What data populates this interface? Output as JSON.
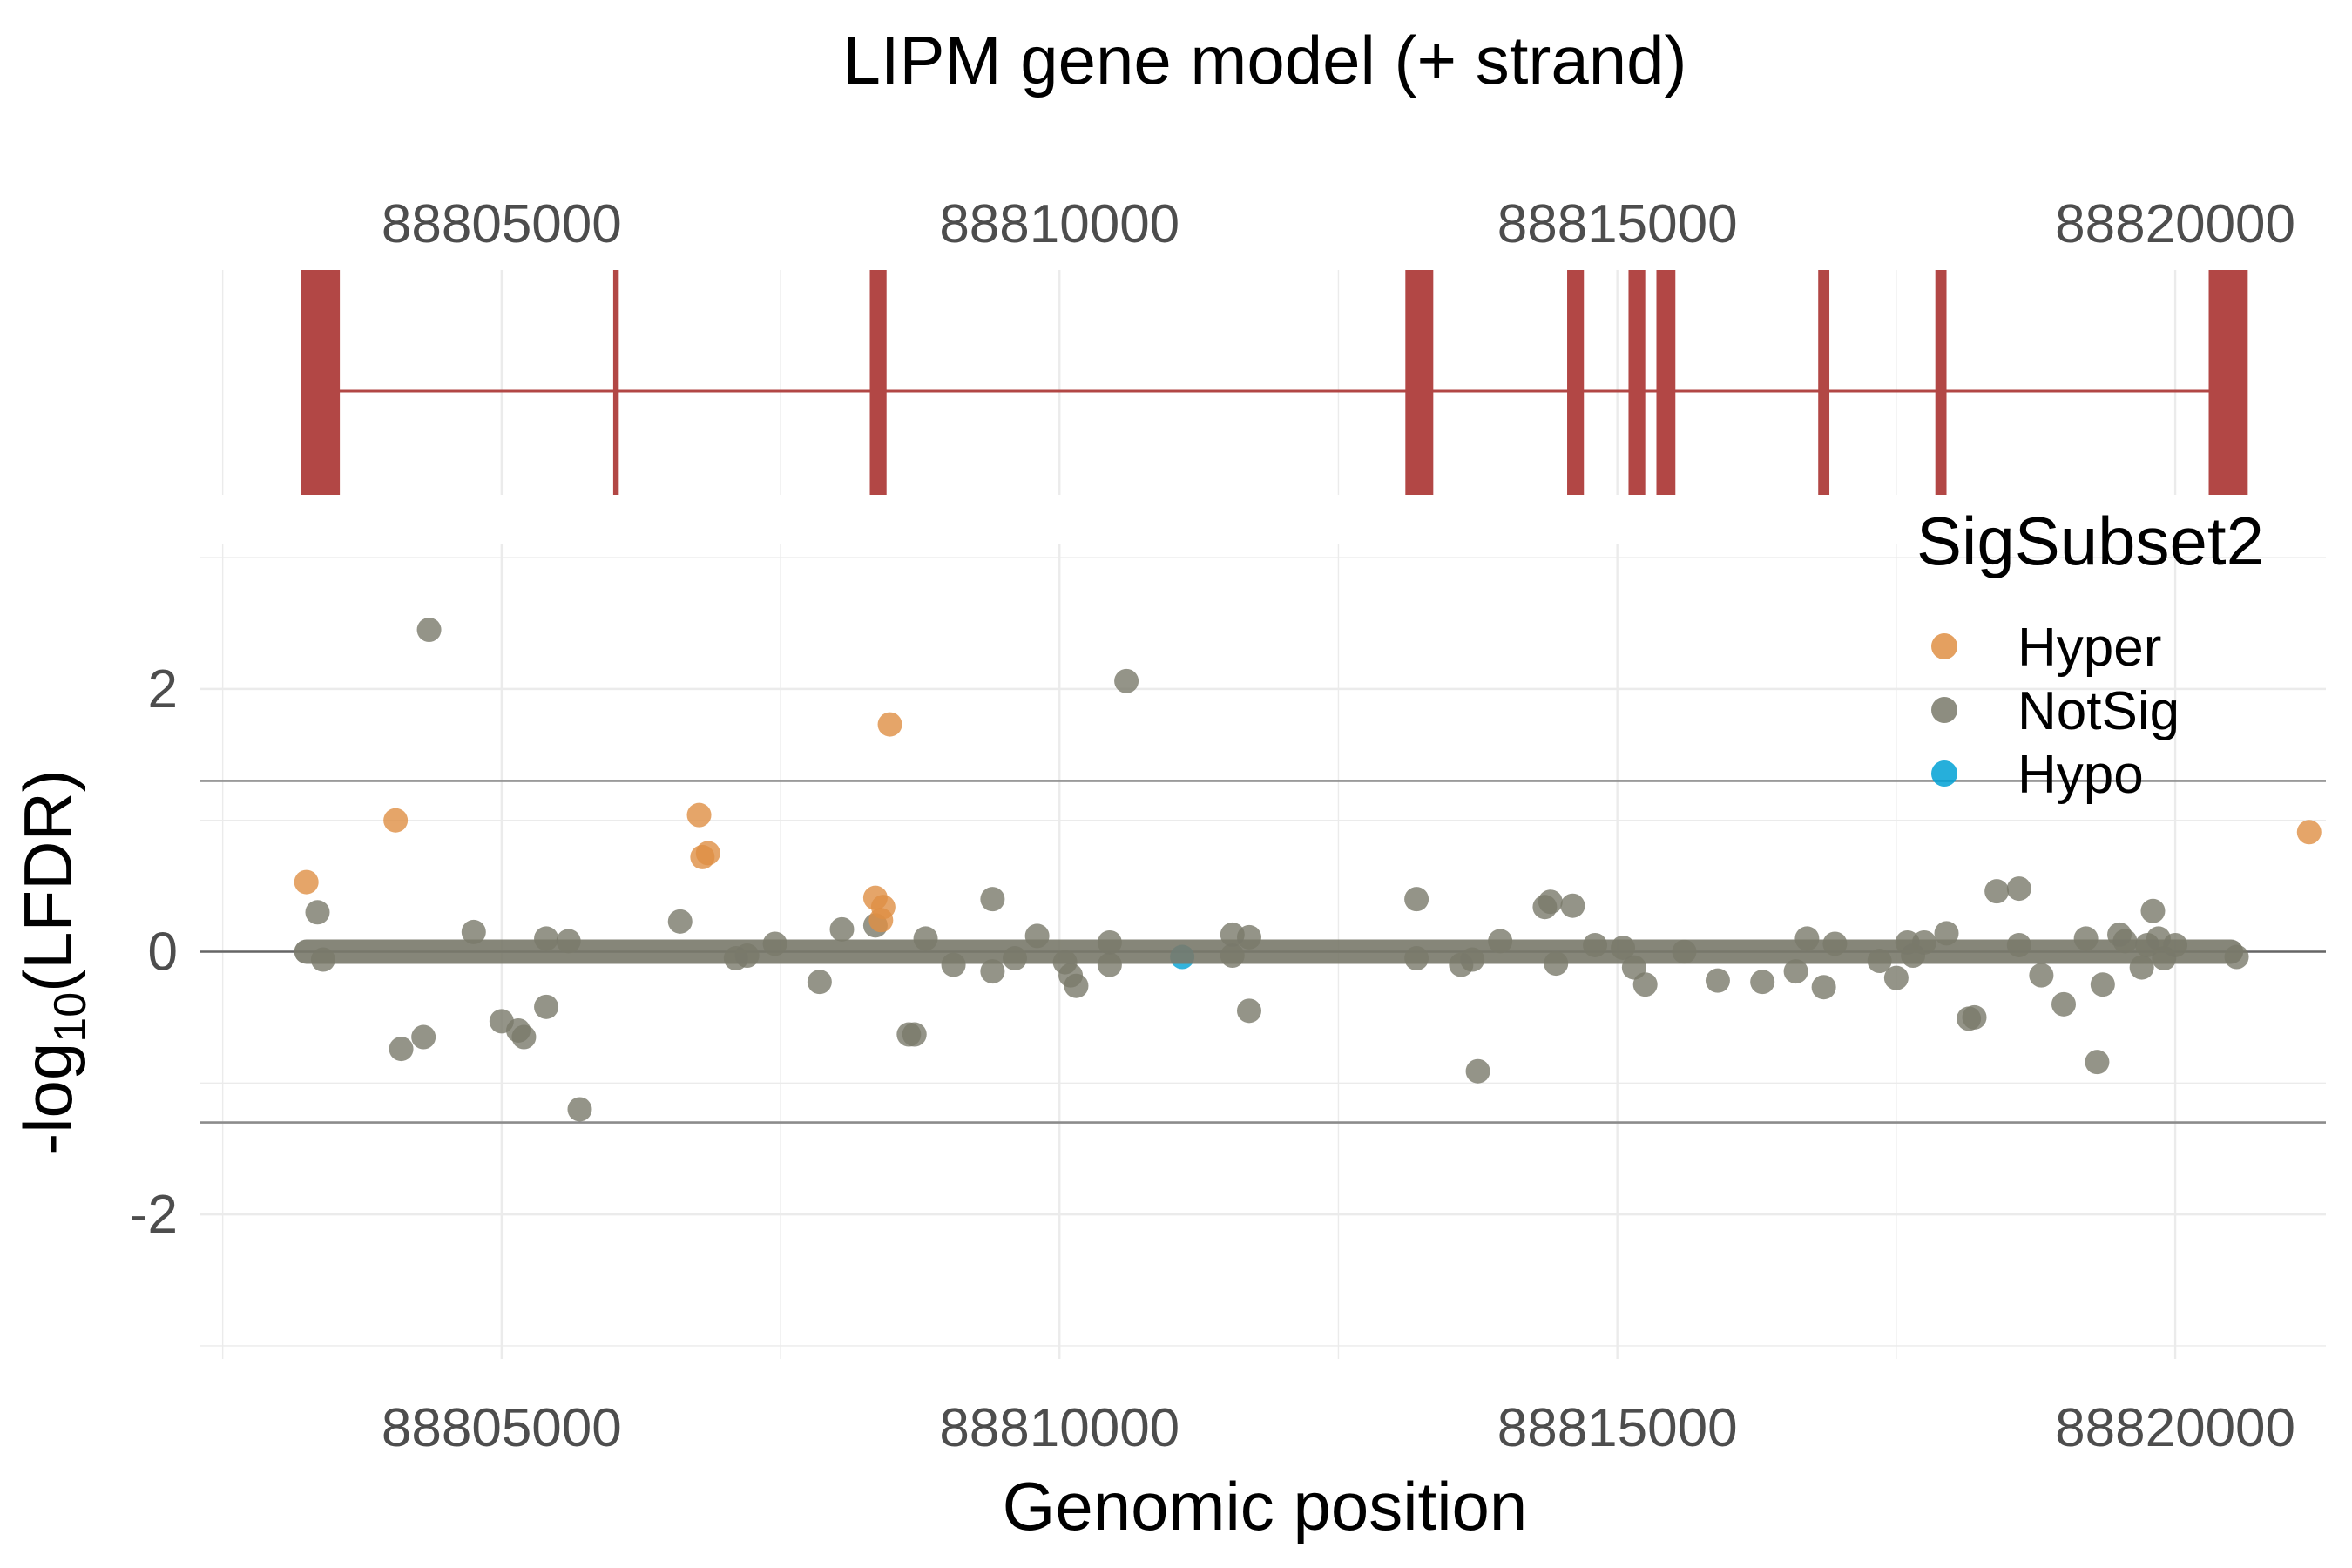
{
  "title": "LIPM gene model (+ strand)",
  "colors": {
    "exon": "#B24745",
    "Hyper": "#DF8F44",
    "NotSig": "#79796A",
    "Hypo": "#00A1D5",
    "grid": "#EBEBEB",
    "refline": "#8C8C8C",
    "zeroline": "#666666",
    "tick_text": "#4D4D4D"
  },
  "chart_data": [
    {
      "type": "gene-model",
      "strand": "+",
      "x_ticks": [
        88805000,
        88810000,
        88815000,
        88820000
      ],
      "xlim": [
        88802300,
        88821350
      ],
      "intron": [
        88803200,
        88820400
      ],
      "exons": [
        [
          88803200,
          88803550
        ],
        [
          88806000,
          88806050
        ],
        [
          88808300,
          88808450
        ],
        [
          88813100,
          88813350
        ],
        [
          88814550,
          88814700
        ],
        [
          88815100,
          88815250
        ],
        [
          88815350,
          88815520
        ],
        [
          88816800,
          88816900
        ],
        [
          88817850,
          88817950
        ],
        [
          88820300,
          88820650
        ]
      ]
    },
    {
      "type": "scatter",
      "xlabel": "Genomic position",
      "ylabel": "-log10(LFDR)",
      "ylabel_parts": {
        "base": "-log",
        "sub": "10",
        "rest": "(LFDR)"
      },
      "xlim": [
        88802300,
        88821350
      ],
      "ylim": [
        -3.1,
        3.1
      ],
      "x_ticks": [
        88805000,
        88810000,
        88815000,
        88820000
      ],
      "y_ticks": [
        2,
        0,
        -2
      ],
      "y_tick_labels": [
        "2",
        "0",
        "-2"
      ],
      "hlines": [
        1.3,
        -1.3
      ],
      "zero_line": true,
      "dense_band": {
        "x": [
          88803250,
          88820500
        ],
        "y": 0
      },
      "legend": {
        "title": "SigSubset2",
        "position": "top-right",
        "entries": [
          "Hyper",
          "NotSig",
          "Hypo"
        ]
      },
      "series": [
        {
          "name": "Hyper",
          "points": [
            [
              88803250,
              0.53
            ],
            [
              88804050,
              1.0
            ],
            [
              88806770,
              1.04
            ],
            [
              88806800,
              0.72
            ],
            [
              88806850,
              0.75
            ],
            [
              88808350,
              0.41
            ],
            [
              88808400,
              0.24
            ],
            [
              88808420,
              0.34
            ],
            [
              88808480,
              1.73
            ],
            [
              88821200,
              0.91
            ]
          ]
        },
        {
          "name": "NotSig",
          "points": [
            [
              88804350,
              2.45
            ],
            [
              88810600,
              2.06
            ],
            [
              88803350,
              0.3
            ],
            [
              88803400,
              -0.06
            ],
            [
              88804100,
              -0.74
            ],
            [
              88804300,
              -0.65
            ],
            [
              88804750,
              0.15
            ],
            [
              88805000,
              -0.53
            ],
            [
              88805150,
              -0.6
            ],
            [
              88805200,
              -0.65
            ],
            [
              88805400,
              0.1
            ],
            [
              88805400,
              -0.42
            ],
            [
              88805600,
              0.08
            ],
            [
              88805700,
              -1.2
            ],
            [
              88806600,
              0.23
            ],
            [
              88807100,
              -0.05
            ],
            [
              88807200,
              -0.03
            ],
            [
              88807450,
              0.06
            ],
            [
              88807850,
              -0.23
            ],
            [
              88808050,
              0.17
            ],
            [
              88808650,
              -0.63
            ],
            [
              88808700,
              -0.63
            ],
            [
              88808350,
              0.2
            ],
            [
              88808800,
              0.1
            ],
            [
              88809050,
              -0.1
            ],
            [
              88809400,
              0.4
            ],
            [
              88809400,
              -0.15
            ],
            [
              88809600,
              -0.05
            ],
            [
              88809800,
              0.12
            ],
            [
              88810050,
              -0.08
            ],
            [
              88810100,
              -0.18
            ],
            [
              88810150,
              -0.26
            ],
            [
              88810450,
              0.07
            ],
            [
              88810450,
              -0.1
            ],
            [
              88811550,
              0.13
            ],
            [
              88811550,
              -0.03
            ],
            [
              88811700,
              0.11
            ],
            [
              88811700,
              -0.45
            ],
            [
              88813200,
              0.4
            ],
            [
              88813200,
              -0.05
            ],
            [
              88813600,
              -0.1
            ],
            [
              88813700,
              -0.06
            ],
            [
              88813750,
              -0.91
            ],
            [
              88813950,
              0.08
            ],
            [
              88814350,
              0.34
            ],
            [
              88814400,
              0.38
            ],
            [
              88814450,
              -0.09
            ],
            [
              88814600,
              0.35
            ],
            [
              88814800,
              0.05
            ],
            [
              88815050,
              0.03
            ],
            [
              88815150,
              -0.12
            ],
            [
              88815250,
              -0.25
            ],
            [
              88815600,
              0.0
            ],
            [
              88815900,
              -0.22
            ],
            [
              88816300,
              -0.23
            ],
            [
              88816600,
              -0.15
            ],
            [
              88816700,
              0.1
            ],
            [
              88816850,
              -0.27
            ],
            [
              88816950,
              0.06
            ],
            [
              88817350,
              -0.07
            ],
            [
              88817500,
              -0.2
            ],
            [
              88817600,
              0.07
            ],
            [
              88817650,
              -0.03
            ],
            [
              88817750,
              0.07
            ],
            [
              88817950,
              0.14
            ],
            [
              88818150,
              -0.51
            ],
            [
              88818200,
              -0.5
            ],
            [
              88818400,
              0.46
            ],
            [
              88818600,
              0.48
            ],
            [
              88818600,
              0.05
            ],
            [
              88818800,
              -0.18
            ],
            [
              88819000,
              -0.4
            ],
            [
              88819200,
              0.1
            ],
            [
              88819300,
              -0.84
            ],
            [
              88819350,
              -0.25
            ],
            [
              88819500,
              0.13
            ],
            [
              88819550,
              0.08
            ],
            [
              88819700,
              -0.12
            ],
            [
              88819750,
              0.05
            ],
            [
              88819800,
              0.31
            ],
            [
              88819850,
              0.1
            ],
            [
              88819900,
              -0.05
            ],
            [
              88820000,
              0.05
            ],
            [
              88820550,
              -0.04
            ]
          ]
        },
        {
          "name": "Hypo",
          "points": [
            [
              88811100,
              -0.04
            ]
          ]
        }
      ]
    }
  ]
}
